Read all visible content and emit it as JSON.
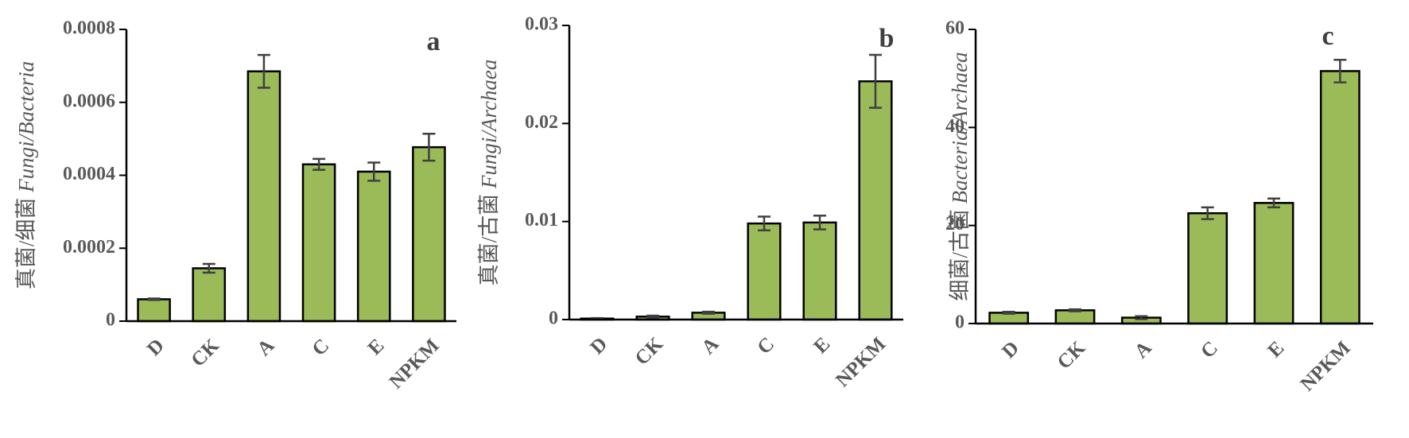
{
  "chart_data": [
    {
      "type": "bar",
      "label": "a",
      "ylabel": "真菌/细菌",
      "ylabel_latin": "Fungi/Bacteria",
      "categories": [
        "D",
        "CK",
        "A",
        "C",
        "E",
        "NPKM"
      ],
      "values": [
        6e-05,
        0.000145,
        0.000685,
        0.00043,
        0.00041,
        0.000477
      ],
      "errors": [
        2e-06,
        1.2e-05,
        4.5e-05,
        1.5e-05,
        2.5e-05,
        3.7e-05
      ],
      "color": "#9bbb59",
      "ylim": [
        0,
        0.0008
      ],
      "yticks": [
        0,
        0.0002,
        0.0004,
        0.0006,
        0.0008
      ]
    },
    {
      "type": "bar",
      "label": "b",
      "ylabel": "真菌/古菌",
      "ylabel_latin": "Fungi/Archaea",
      "categories": [
        "D",
        "CK",
        "A",
        "C",
        "E",
        "NPKM"
      ],
      "values": [
        0.0001,
        0.0003,
        0.0007,
        0.0098,
        0.0099,
        0.0243
      ],
      "errors": [
        5e-05,
        0.0001,
        0.0001,
        0.0007,
        0.0007,
        0.0027
      ],
      "color": "#9bbb59",
      "ylim": [
        0,
        0.03
      ],
      "yticks": [
        0,
        0.01,
        0.02,
        0.03
      ]
    },
    {
      "type": "bar",
      "label": "c",
      "ylabel": "细菌/古菌",
      "ylabel_latin": "Bacteria/Archaea",
      "categories": [
        "D",
        "CK",
        "A",
        "C",
        "E",
        "NPKM"
      ],
      "values": [
        2.2,
        2.7,
        1.2,
        22.5,
        24.6,
        51.5
      ],
      "errors": [
        0.2,
        0.2,
        0.3,
        1.2,
        0.9,
        2.3
      ],
      "color": "#9bbb59",
      "ylim": [
        0,
        60
      ],
      "yticks": [
        0,
        20,
        40,
        60
      ]
    }
  ]
}
